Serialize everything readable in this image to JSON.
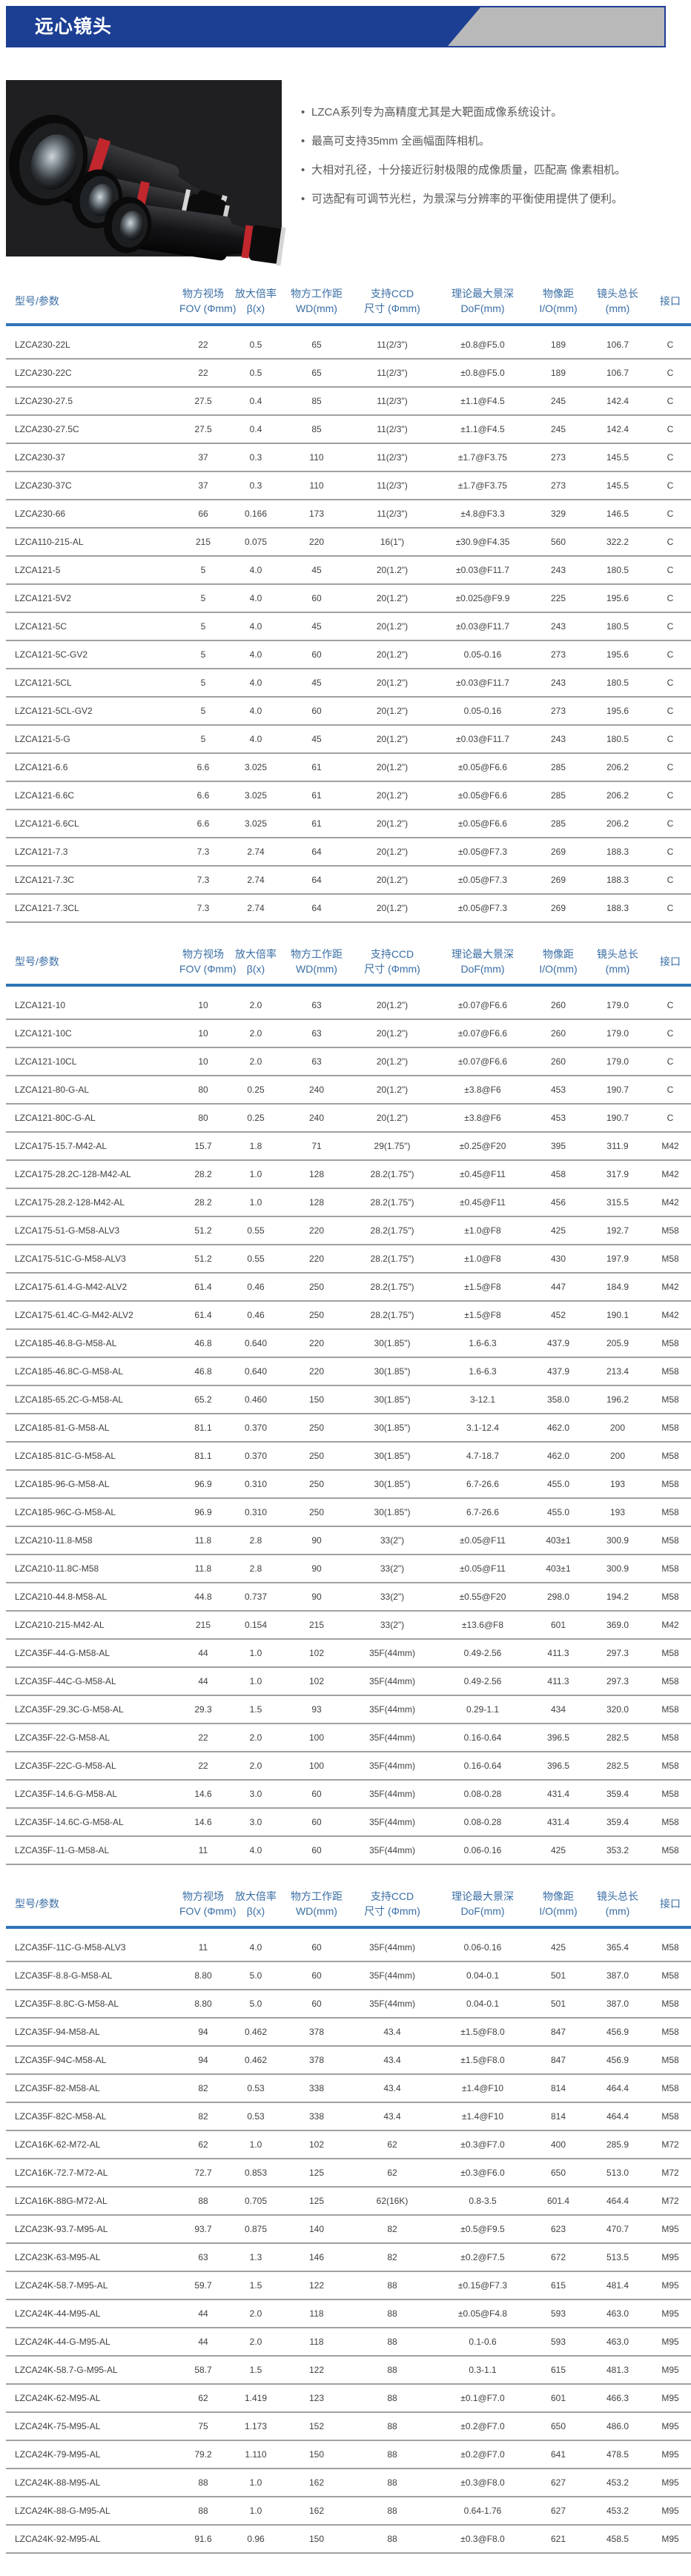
{
  "banner": {
    "title": "远心镜头"
  },
  "features": [
    "LZCA系列专为高精度尤其是大靶面成像系统设计。",
    "最高可支持35mm 全画幅面阵相机。",
    "大相对孔径，十分接近衍射极限的成像质量，匹配高 像素相机。",
    "可选配有可调节光栏，为景深与分辨率的平衡使用提供了便利。"
  ],
  "colors": {
    "banner_blue": "#1c3f94",
    "banner_gray": "#b9b9b9",
    "header_text_blue": "#3a6ea5",
    "header_rule_blue": "#2e75b6",
    "row_line_gray": "#a0a0a0",
    "lens_accent_red": "#c1272d"
  },
  "table_headers": [
    [
      "型号/参数"
    ],
    [
      "物方视场",
      "FOV (Φmm)"
    ],
    [
      "放大倍率",
      "β(x)"
    ],
    [
      "物方工作距",
      "WD(mm)"
    ],
    [
      "支持CCD",
      "尺寸 (Φmm)"
    ],
    [
      "理论最大景深",
      "DoF(mm)"
    ],
    [
      "物像距",
      "I/O(mm)"
    ],
    [
      "镜头总长",
      "(mm)"
    ],
    [
      "接口"
    ]
  ],
  "tables": [
    {
      "rows": [
        [
          "LZCA230-22L",
          "22",
          "0.5",
          "65",
          "11(2/3\")",
          "±0.8@F5.0",
          "189",
          "106.7",
          "C"
        ],
        [
          "LZCA230-22C",
          "22",
          "0.5",
          "65",
          "11(2/3\")",
          "±0.8@F5.0",
          "189",
          "106.7",
          "C"
        ],
        [
          "LZCA230-27.5",
          "27.5",
          "0.4",
          "85",
          "11(2/3\")",
          "±1.1@F4.5",
          "245",
          "142.4",
          "C"
        ],
        [
          "LZCA230-27.5C",
          "27.5",
          "0.4",
          "85",
          "11(2/3\")",
          "±1.1@F4.5",
          "245",
          "142.4",
          "C"
        ],
        [
          "LZCA230-37",
          "37",
          "0.3",
          "110",
          "11(2/3\")",
          "±1.7@F3.75",
          "273",
          "145.5",
          "C"
        ],
        [
          "LZCA230-37C",
          "37",
          "0.3",
          "110",
          "11(2/3\")",
          "±1.7@F3.75",
          "273",
          "145.5",
          "C"
        ],
        [
          "LZCA230-66",
          "66",
          "0.166",
          "173",
          "11(2/3\")",
          "±4.8@F3.3",
          "329",
          "146.5",
          "C"
        ],
        [
          "LZCA110-215-AL",
          "215",
          "0.075",
          "220",
          "16(1\")",
          "±30.9@F4.35",
          "560",
          "322.2",
          "C"
        ],
        [
          "LZCA121-5",
          "5",
          "4.0",
          "45",
          "20(1.2\")",
          "±0.03@F11.7",
          "243",
          "180.5",
          "C"
        ],
        [
          "LZCA121-5V2",
          "5",
          "4.0",
          "60",
          "20(1.2\")",
          "±0.025@F9.9",
          "225",
          "195.6",
          "C"
        ],
        [
          "LZCA121-5C",
          "5",
          "4.0",
          "45",
          "20(1.2\")",
          "±0.03@F11.7",
          "243",
          "180.5",
          "C"
        ],
        [
          "LZCA121-5C-GV2",
          "5",
          "4.0",
          "60",
          "20(1.2\")",
          "0.05-0.16",
          "273",
          "195.6",
          "C"
        ],
        [
          "LZCA121-5CL",
          "5",
          "4.0",
          "45",
          "20(1.2\")",
          "±0.03@F11.7",
          "243",
          "180.5",
          "C"
        ],
        [
          "LZCA121-5CL-GV2",
          "5",
          "4.0",
          "60",
          "20(1.2\")",
          "0.05-0.16",
          "273",
          "195.6",
          "C"
        ],
        [
          "LZCA121-5-G",
          "5",
          "4.0",
          "45",
          "20(1.2\")",
          "±0.03@F11.7",
          "243",
          "180.5",
          "C"
        ],
        [
          "LZCA121-6.6",
          "6.6",
          "3.025",
          "61",
          "20(1.2\")",
          "±0.05@F6.6",
          "285",
          "206.2",
          "C"
        ],
        [
          "LZCA121-6.6C",
          "6.6",
          "3.025",
          "61",
          "20(1.2\")",
          "±0.05@F6.6",
          "285",
          "206.2",
          "C"
        ],
        [
          "LZCA121-6.6CL",
          "6.6",
          "3.025",
          "61",
          "20(1.2\")",
          "±0.05@F6.6",
          "285",
          "206.2",
          "C"
        ],
        [
          "LZCA121-7.3",
          "7.3",
          "2.74",
          "64",
          "20(1.2\")",
          "±0.05@F7.3",
          "269",
          "188.3",
          "C"
        ],
        [
          "LZCA121-7.3C",
          "7.3",
          "2.74",
          "64",
          "20(1.2\")",
          "±0.05@F7.3",
          "269",
          "188.3",
          "C"
        ],
        [
          "LZCA121-7.3CL",
          "7.3",
          "2.74",
          "64",
          "20(1.2\")",
          "±0.05@F7.3",
          "269",
          "188.3",
          "C"
        ]
      ]
    },
    {
      "rows": [
        [
          "LZCA121-10",
          "10",
          "2.0",
          "63",
          "20(1.2\")",
          "±0.07@F6.6",
          "260",
          "179.0",
          "C"
        ],
        [
          "LZCA121-10C",
          "10",
          "2.0",
          "63",
          "20(1.2\")",
          "±0.07@F6.6",
          "260",
          "179.0",
          "C"
        ],
        [
          "LZCA121-10CL",
          "10",
          "2.0",
          "63",
          "20(1.2\")",
          "±0.07@F6.6",
          "260",
          "179.0",
          "C"
        ],
        [
          "LZCA121-80-G-AL",
          "80",
          "0.25",
          "240",
          "20(1.2\")",
          "±3.8@F6",
          "453",
          "190.7",
          "C"
        ],
        [
          "LZCA121-80C-G-AL",
          "80",
          "0.25",
          "240",
          "20(1.2\")",
          "±3.8@F6",
          "453",
          "190.7",
          "C"
        ],
        [
          "LZCA175-15.7-M42-AL",
          "15.7",
          "1.8",
          "71",
          "29(1.75\")",
          "±0.25@F20",
          "395",
          "311.9",
          "M42"
        ],
        [
          "LZCA175-28.2C-128-M42-AL",
          "28.2",
          "1.0",
          "128",
          "28.2(1.75\")",
          "±0.45@F11",
          "458",
          "317.9",
          "M42"
        ],
        [
          "LZCA175-28.2-128-M42-AL",
          "28.2",
          "1.0",
          "128",
          "28.2(1.75\")",
          "±0.45@F11",
          "456",
          "315.5",
          "M42"
        ],
        [
          "LZCA175-51-G-M58-ALV3",
          "51.2",
          "0.55",
          "220",
          "28.2(1.75\")",
          "±1.0@F8",
          "425",
          "192.7",
          "M58"
        ],
        [
          "LZCA175-51C-G-M58-ALV3",
          "51.2",
          "0.55",
          "220",
          "28.2(1.75\")",
          "±1.0@F8",
          "430",
          "197.9",
          "M58"
        ],
        [
          "LZCA175-61.4-G-M42-ALV2",
          "61.4",
          "0.46",
          "250",
          "28.2(1.75\")",
          "±1.5@F8",
          "447",
          "184.9",
          "M42"
        ],
        [
          "LZCA175-61.4C-G-M42-ALV2",
          "61.4",
          "0.46",
          "250",
          "28.2(1.75\")",
          "±1.5@F8",
          "452",
          "190.1",
          "M42"
        ],
        [
          "LZCA185-46.8-G-M58-AL",
          "46.8",
          "0.640",
          "220",
          "30(1.85\")",
          "1.6-6.3",
          "437.9",
          "205.9",
          "M58"
        ],
        [
          "LZCA185-46.8C-G-M58-AL",
          "46.8",
          "0.640",
          "220",
          "30(1.85\")",
          "1.6-6.3",
          "437.9",
          "213.4",
          "M58"
        ],
        [
          "LZCA185-65.2C-G-M58-AL",
          "65.2",
          "0.460",
          "150",
          "30(1.85\")",
          "3-12.1",
          "358.0",
          "196.2",
          "M58"
        ],
        [
          "LZCA185-81-G-M58-AL",
          "81.1",
          "0.370",
          "250",
          "30(1.85\")",
          "3.1-12.4",
          "462.0",
          "200",
          "M58"
        ],
        [
          "LZCA185-81C-G-M58-AL",
          "81.1",
          "0.370",
          "250",
          "30(1.85\")",
          "4.7-18.7",
          "462.0",
          "200",
          "M58"
        ],
        [
          "LZCA185-96-G-M58-AL",
          "96.9",
          "0.310",
          "250",
          "30(1.85\")",
          "6.7-26.6",
          "455.0",
          "193",
          "M58"
        ],
        [
          "LZCA185-96C-G-M58-AL",
          "96.9",
          "0.310",
          "250",
          "30(1.85\")",
          "6.7-26.6",
          "455.0",
          "193",
          "M58"
        ],
        [
          "LZCA210-11.8-M58",
          "11.8",
          "2.8",
          "90",
          "33(2\")",
          "±0.05@F11",
          "403±1",
          "300.9",
          "M58"
        ],
        [
          "LZCA210-11.8C-M58",
          "11.8",
          "2.8",
          "90",
          "33(2\")",
          "±0.05@F11",
          "403±1",
          "300.9",
          "M58"
        ],
        [
          "LZCA210-44.8-M58-AL",
          "44.8",
          "0.737",
          "90",
          "33(2\")",
          "±0.55@F20",
          "298.0",
          "194.2",
          "M58"
        ],
        [
          "LZCA210-215-M42-AL",
          "215",
          "0.154",
          "215",
          "33(2\")",
          "±13.6@F8",
          "601",
          "369.0",
          "M42"
        ],
        [
          "LZCA35F-44-G-M58-AL",
          "44",
          "1.0",
          "102",
          "35F(44mm)",
          "0.49-2.56",
          "411.3",
          "297.3",
          "M58"
        ],
        [
          "LZCA35F-44C-G-M58-AL",
          "44",
          "1.0",
          "102",
          "35F(44mm)",
          "0.49-2.56",
          "411.3",
          "297.3",
          "M58"
        ],
        [
          "LZCA35F-29.3C-G-M58-AL",
          "29.3",
          "1.5",
          "93",
          "35F(44mm)",
          "0.29-1.1",
          "434",
          "320.0",
          "M58"
        ],
        [
          "LZCA35F-22-G-M58-AL",
          "22",
          "2.0",
          "100",
          "35F(44mm)",
          "0.16-0.64",
          "396.5",
          "282.5",
          "M58"
        ],
        [
          "LZCA35F-22C-G-M58-AL",
          "22",
          "2.0",
          "100",
          "35F(44mm)",
          "0.16-0.64",
          "396.5",
          "282.5",
          "M58"
        ],
        [
          "LZCA35F-14.6-G-M58-AL",
          "14.6",
          "3.0",
          "60",
          "35F(44mm)",
          "0.08-0.28",
          "431.4",
          "359.4",
          "M58"
        ],
        [
          "LZCA35F-14.6C-G-M58-AL",
          "14.6",
          "3.0",
          "60",
          "35F(44mm)",
          "0.08-0.28",
          "431.4",
          "359.4",
          "M58"
        ],
        [
          "LZCA35F-11-G-M58-AL",
          "11",
          "4.0",
          "60",
          "35F(44mm)",
          "0.06-0.16",
          "425",
          "353.2",
          "M58"
        ]
      ]
    },
    {
      "rows": [
        [
          "LZCA35F-11C-G-M58-ALV3",
          "11",
          "4.0",
          "60",
          "35F(44mm)",
          "0.06-0.16",
          "425",
          "365.4",
          "M58"
        ],
        [
          "LZCA35F-8.8-G-M58-AL",
          "8.80",
          "5.0",
          "60",
          "35F(44mm)",
          "0.04-0.1",
          "501",
          "387.0",
          "M58"
        ],
        [
          "LZCA35F-8.8C-G-M58-AL",
          "8.80",
          "5.0",
          "60",
          "35F(44mm)",
          "0.04-0.1",
          "501",
          "387.0",
          "M58"
        ],
        [
          "LZCA35F-94-M58-AL",
          "94",
          "0.462",
          "378",
          "43.4",
          "±1.5@F8.0",
          "847",
          "456.9",
          "M58"
        ],
        [
          "LZCA35F-94C-M58-AL",
          "94",
          "0.462",
          "378",
          "43.4",
          "±1.5@F8.0",
          "847",
          "456.9",
          "M58"
        ],
        [
          "LZCA35F-82-M58-AL",
          "82",
          "0.53",
          "338",
          "43.4",
          "±1.4@F10",
          "814",
          "464.4",
          "M58"
        ],
        [
          "LZCA35F-82C-M58-AL",
          "82",
          "0.53",
          "338",
          "43.4",
          "±1.4@F10",
          "814",
          "464.4",
          "M58"
        ],
        [
          "LZCA16K-62-M72-AL",
          "62",
          "1.0",
          "102",
          "62",
          "±0.3@F7.0",
          "400",
          "285.9",
          "M72"
        ],
        [
          "LZCA16K-72.7-M72-AL",
          "72.7",
          "0.853",
          "125",
          "62",
          "±0.3@F6.0",
          "650",
          "513.0",
          "M72"
        ],
        [
          "LZCA16K-88G-M72-AL",
          "88",
          "0.705",
          "125",
          "62(16K)",
          "0.8-3.5",
          "601.4",
          "464.4",
          "M72"
        ],
        [
          "LZCA23K-93.7-M95-AL",
          "93.7",
          "0.875",
          "140",
          "82",
          "±0.5@F9.5",
          "623",
          "470.7",
          "M95"
        ],
        [
          "LZCA23K-63-M95-AL",
          "63",
          "1.3",
          "146",
          "82",
          "±0.2@F7.5",
          "672",
          "513.5",
          "M95"
        ],
        [
          "LZCA24K-58.7-M95-AL",
          "59.7",
          "1.5",
          "122",
          "88",
          "±0.15@F7.3",
          "615",
          "481.4",
          "M95"
        ],
        [
          "LZCA24K-44-M95-AL",
          "44",
          "2.0",
          "118",
          "88",
          "±0.05@F4.8",
          "593",
          "463.0",
          "M95"
        ],
        [
          "LZCA24K-44-G-M95-AL",
          "44",
          "2.0",
          "118",
          "88",
          "0.1-0.6",
          "593",
          "463.0",
          "M95"
        ],
        [
          "LZCA24K-58.7-G-M95-AL",
          "58.7",
          "1.5",
          "122",
          "88",
          "0.3-1.1",
          "615",
          "481.3",
          "M95"
        ],
        [
          "LZCA24K-62-M95-AL",
          "62",
          "1.419",
          "123",
          "88",
          "±0.1@F7.0",
          "601",
          "466.3",
          "M95"
        ],
        [
          "LZCA24K-75-M95-AL",
          "75",
          "1.173",
          "152",
          "88",
          "±0.2@F7.0",
          "650",
          "486.0",
          "M95"
        ],
        [
          "LZCA24K-79-M95-AL",
          "79.2",
          "1.110",
          "150",
          "88",
          "±0.2@F7.0",
          "641",
          "478.5",
          "M95"
        ],
        [
          "LZCA24K-88-M95-AL",
          "88",
          "1.0",
          "162",
          "88",
          "±0.3@F8.0",
          "627",
          "453.2",
          "M95"
        ],
        [
          "LZCA24K-88-G-M95-AL",
          "88",
          "1.0",
          "162",
          "88",
          "0.64-1.76",
          "627",
          "453.2",
          "M95"
        ],
        [
          "LZCA24K-92-M95-AL",
          "91.6",
          "0.96",
          "150",
          "88",
          "±0.3@F8.0",
          "621",
          "458.5",
          "M95"
        ]
      ]
    }
  ]
}
